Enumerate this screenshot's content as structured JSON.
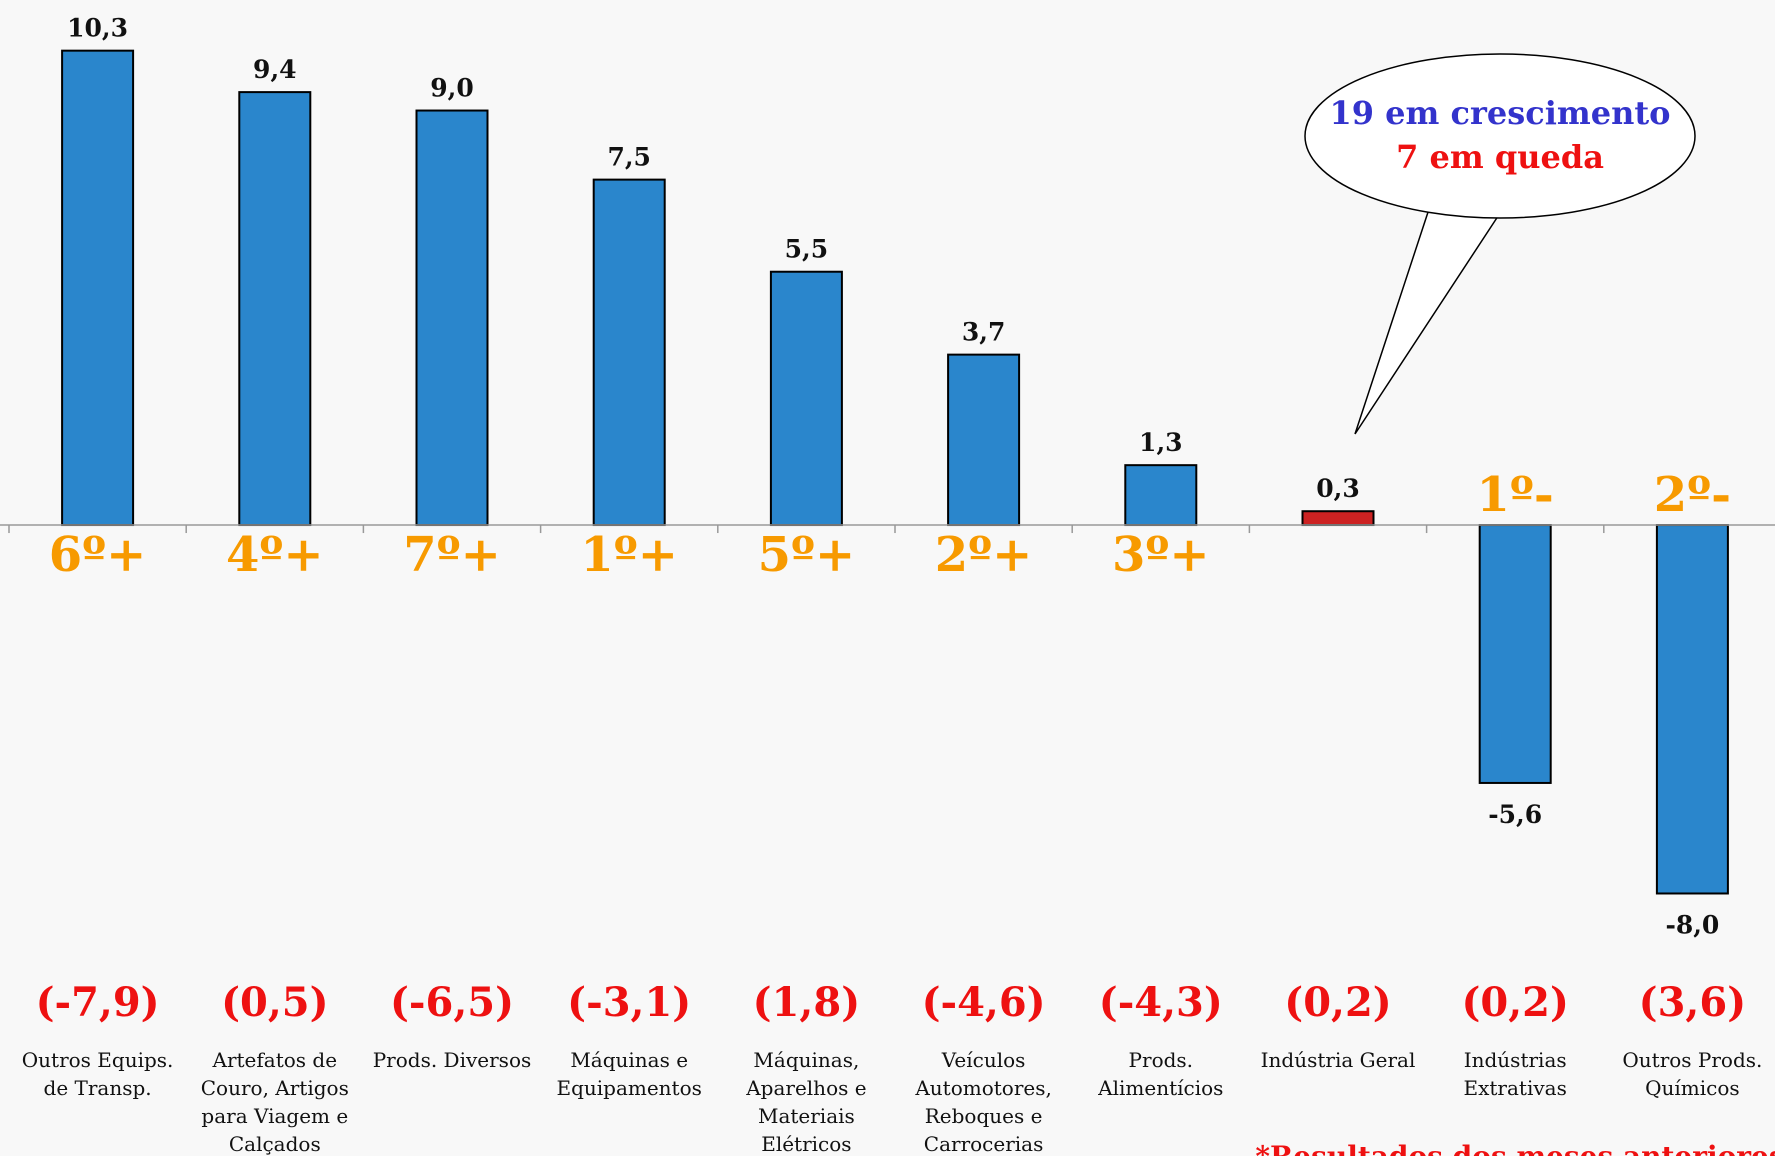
{
  "chart_data": {
    "type": "bar",
    "categories": [
      "Outros Equips. de Transp.",
      "Artefatos de Couro, Artigos para Viagem e Calçados",
      "Prods. Diversos",
      "Máquinas e Equipamentos",
      "Máquinas, Aparelhos e Materiais Elétricos",
      "Veículos Automotores, Reboques e Carrocerias",
      "Prods. Alimentícios",
      "Indústria Geral",
      "Indústrias Extrativas",
      "Outros Prods. Químicos"
    ],
    "values": [
      10.3,
      9.4,
      9.0,
      7.5,
      5.5,
      3.7,
      1.3,
      0.3,
      -5.6,
      -8.0
    ],
    "value_labels": [
      "10,3",
      "9,4",
      "9,0",
      "7,5",
      "5,5",
      "3,7",
      "1,3",
      "0,3",
      "-5,6",
      "-8,0"
    ],
    "colors": [
      "#2a86cc",
      "#2a86cc",
      "#2a86cc",
      "#2a86cc",
      "#2a86cc",
      "#2a86cc",
      "#2a86cc",
      "#cc2222",
      "#2a86cc",
      "#2a86cc"
    ],
    "rank_labels": [
      "6º+",
      "4º+",
      "7º+",
      "1º+",
      "5º+",
      "2º+",
      "3º+",
      null,
      "1º-",
      "2º-"
    ],
    "previous_results": [
      "(-7,9)",
      "(0,5)",
      "(-6,5)",
      "(-3,1)",
      "(1,8)",
      "(-4,6)",
      "(-4,3)",
      "(0,2)",
      "(0,2)",
      "(3,6)"
    ],
    "ylim": [
      -13.7,
      11.4
    ],
    "annotation": {
      "line1": "19 em crescimento",
      "line2": "7 em queda"
    },
    "footnote": "*Resultados dos meses anteriores"
  }
}
